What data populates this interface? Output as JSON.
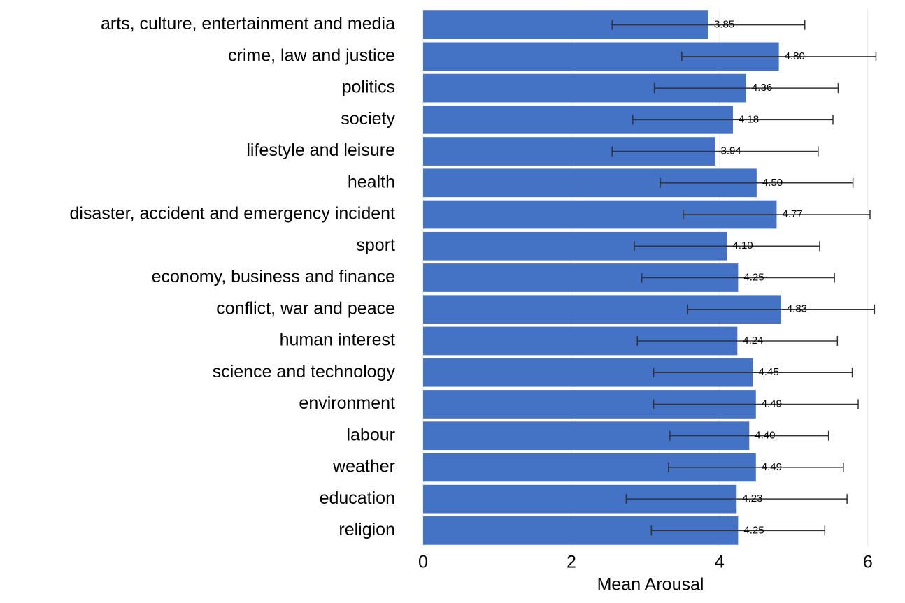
{
  "chart_data": {
    "type": "bar",
    "orientation": "horizontal",
    "xlabel": "Mean Arousal",
    "categories": [
      "arts, culture, entertainment and media",
      "crime, law and justice",
      "politics",
      "society",
      "lifestyle and leisure",
      "health",
      "disaster, accident and emergency incident",
      "sport",
      "economy, business and finance",
      "conflict, war and peace",
      "human interest",
      "science and technology",
      "environment",
      "labour",
      "weather",
      "education",
      "religion"
    ],
    "values": [
      3.85,
      4.8,
      4.36,
      4.18,
      3.94,
      4.5,
      4.77,
      4.1,
      4.25,
      4.83,
      4.24,
      4.45,
      4.49,
      4.4,
      4.49,
      4.23,
      4.25
    ],
    "value_labels": [
      "3.85",
      "4.80",
      "4.36",
      "4.18",
      "3.94",
      "4.50",
      "4.77",
      "4.10",
      "4.25",
      "4.83",
      "4.24",
      "4.45",
      "4.49",
      "4.40",
      "4.49",
      "4.23",
      "4.25"
    ],
    "errors": [
      1.3,
      1.31,
      1.24,
      1.35,
      1.39,
      1.3,
      1.26,
      1.25,
      1.3,
      1.26,
      1.35,
      1.34,
      1.38,
      1.07,
      1.18,
      1.49,
      1.17
    ],
    "color": "#4472c4",
    "error_color": "#333333",
    "xlim": [
      0,
      6.2
    ],
    "xticks": [
      0,
      2,
      4,
      6
    ],
    "grid": true
  }
}
